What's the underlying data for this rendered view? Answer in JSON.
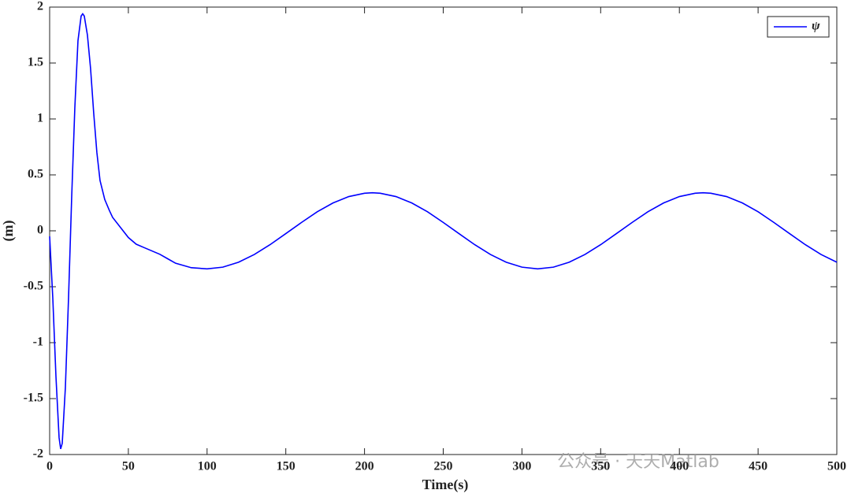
{
  "chart_data": {
    "type": "line",
    "xlabel": "Time(s)",
    "ylabel": "(m)",
    "x": [
      0,
      2,
      4,
      6,
      7,
      8,
      10,
      12,
      14,
      16,
      18,
      20,
      21,
      22,
      24,
      26,
      28,
      30,
      32,
      35,
      38,
      40,
      45,
      50,
      55,
      60,
      65,
      70,
      75,
      80,
      90,
      100,
      110,
      120,
      130,
      140,
      150,
      160,
      170,
      180,
      190,
      200,
      205,
      210,
      220,
      230,
      240,
      250,
      260,
      270,
      280,
      290,
      300,
      310,
      320,
      330,
      340,
      350,
      360,
      370,
      380,
      390,
      400,
      410,
      415,
      420,
      430,
      440,
      450,
      460,
      470,
      480,
      490,
      500
    ],
    "series": [
      {
        "name": "ψ",
        "color": "#0000ff",
        "values": [
          -0.05,
          -0.6,
          -1.3,
          -1.85,
          -1.95,
          -1.9,
          -1.4,
          -0.6,
          0.3,
          1.1,
          1.7,
          1.92,
          1.94,
          1.92,
          1.75,
          1.45,
          1.05,
          0.7,
          0.45,
          0.28,
          0.18,
          0.12,
          0.03,
          -0.06,
          -0.12,
          -0.15,
          -0.18,
          -0.21,
          -0.25,
          -0.29,
          -0.33,
          -0.34,
          -0.325,
          -0.281,
          -0.212,
          -0.124,
          -0.025,
          0.075,
          0.17,
          0.249,
          0.306,
          0.336,
          0.34,
          0.336,
          0.306,
          0.249,
          0.17,
          0.075,
          -0.025,
          -0.124,
          -0.212,
          -0.281,
          -0.325,
          -0.34,
          -0.325,
          -0.281,
          -0.212,
          -0.124,
          -0.025,
          0.075,
          0.17,
          0.249,
          0.306,
          0.336,
          0.34,
          0.336,
          0.306,
          0.249,
          0.17,
          0.075,
          -0.025,
          -0.124,
          -0.212,
          -0.281
        ]
      }
    ],
    "xlim": [
      0,
      500
    ],
    "xticks": [
      0,
      50,
      100,
      150,
      200,
      250,
      300,
      350,
      400,
      450,
      500
    ],
    "ylim": [
      -2,
      2
    ],
    "yticks": [
      -2,
      -1.5,
      -1,
      -0.5,
      0,
      0.5,
      1,
      1.5,
      2
    ],
    "legend": "upper right",
    "grid": false,
    "watermark": "公众号 · 天天Matlab"
  }
}
